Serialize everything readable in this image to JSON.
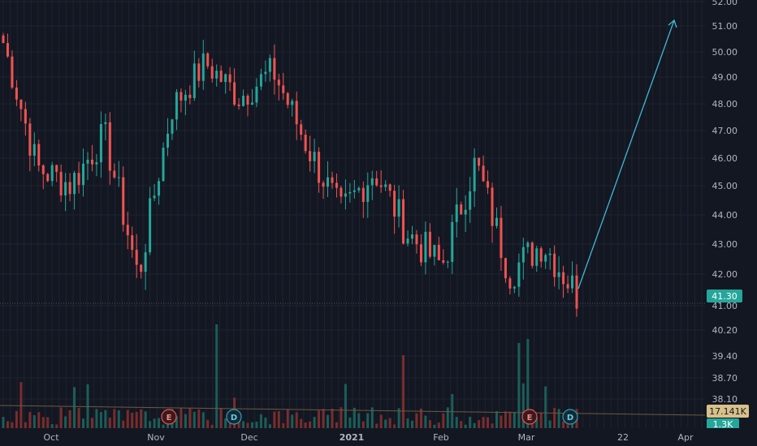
{
  "chart_data": {
    "type": "candlestick",
    "price_axis": {
      "labels": [
        "52.00",
        "51.00",
        "50.00",
        "49.00",
        "48.00",
        "47.00",
        "46.00",
        "45.00",
        "44.00",
        "43.00",
        "42.00",
        "41.00",
        "40.20",
        "39.40",
        "38.70",
        "38.10"
      ],
      "scale": "log"
    },
    "time_axis": {
      "labels": [
        {
          "text": "Oct",
          "bold": false
        },
        {
          "text": "Nov",
          "bold": false
        },
        {
          "text": "Dec",
          "bold": false
        },
        {
          "text": "2021",
          "bold": true
        },
        {
          "text": "Feb",
          "bold": false
        },
        {
          "text": "Mar",
          "bold": false
        },
        {
          "text": "22",
          "bold": false
        },
        {
          "text": "Apr",
          "bold": false
        }
      ]
    },
    "last_price": {
      "label": "41.30",
      "value": 41.3
    },
    "price_line_value": 41.0,
    "volume_tags": [
      {
        "label": "17.141K",
        "kind": "volume-ma"
      },
      {
        "label": "1.3K",
        "kind": "volume"
      }
    ],
    "event_markers": [
      {
        "letter": "E",
        "date": "Nov",
        "kind": "earnings"
      },
      {
        "letter": "D",
        "date": "Dec",
        "kind": "dividend"
      },
      {
        "letter": "E",
        "date": "Mar",
        "kind": "earnings"
      },
      {
        "letter": "D",
        "date": "Mar",
        "kind": "dividend"
      }
    ],
    "projection_arrow": {
      "from_value": 41.3,
      "to_value": 51.2,
      "to_date": "late Mar"
    },
    "colors": {
      "up": "#26a69a",
      "down": "#ef5350",
      "arrow": "#3fb8d4",
      "background": "#131722",
      "grid": "#1f2330"
    },
    "grid": true,
    "series_ohlc_anchor": [
      {
        "date": "late Sep",
        "close": 50.3
      },
      {
        "date": "early Oct",
        "close": 45.6
      },
      {
        "date": "mid Oct",
        "close": 45.0
      },
      {
        "date": "late Oct",
        "close": 46.8
      },
      {
        "date": "early Nov",
        "close": 41.8
      },
      {
        "date": "mid Nov",
        "close": 47.8
      },
      {
        "date": "late Nov",
        "close": 49.5
      },
      {
        "date": "early Dec",
        "close": 48.2
      },
      {
        "date": "mid Dec",
        "close": 49.2
      },
      {
        "date": "late Dec",
        "close": 46.4
      },
      {
        "date": "early Jan",
        "close": 44.0
      },
      {
        "date": "mid Jan",
        "close": 45.5
      },
      {
        "date": "late Jan",
        "close": 43.3
      },
      {
        "date": "early Feb",
        "close": 42.2
      },
      {
        "date": "mid Feb",
        "close": 45.8
      },
      {
        "date": "late Feb",
        "close": 42.0
      },
      {
        "date": "early Mar",
        "close": 43.0
      },
      {
        "date": "mid Mar",
        "close": 41.3
      }
    ]
  }
}
